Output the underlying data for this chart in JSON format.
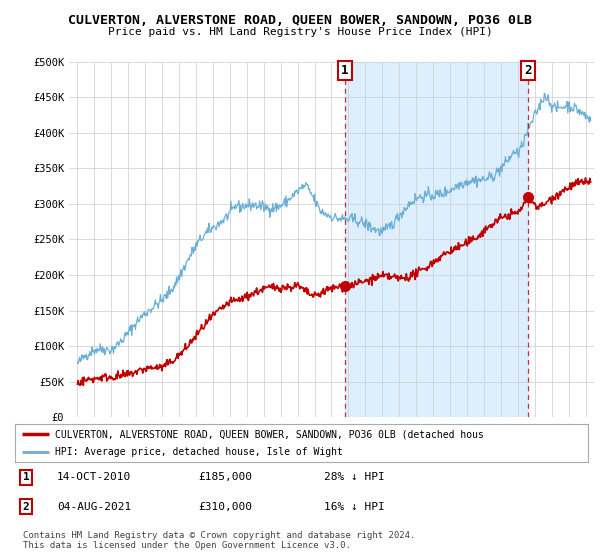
{
  "title": "CULVERTON, ALVERSTONE ROAD, QUEEN BOWER, SANDOWN, PO36 0LB",
  "subtitle": "Price paid vs. HM Land Registry's House Price Index (HPI)",
  "ylabel_ticks": [
    "£0",
    "£50K",
    "£100K",
    "£150K",
    "£200K",
    "£250K",
    "£300K",
    "£350K",
    "£400K",
    "£450K",
    "£500K"
  ],
  "ytick_values": [
    0,
    50000,
    100000,
    150000,
    200000,
    250000,
    300000,
    350000,
    400000,
    450000,
    500000
  ],
  "xlim_start": 1994.5,
  "xlim_end": 2025.5,
  "ylim": [
    0,
    500000
  ],
  "hpi_color": "#6baed6",
  "price_color": "#c00000",
  "shade_color": "#ddeeff",
  "marker1_x": 2010.79,
  "marker1_y": 185000,
  "marker1_label": "1",
  "marker2_x": 2021.59,
  "marker2_y": 310000,
  "marker2_label": "2",
  "legend_line1": "CULVERTON, ALVERSTONE ROAD, QUEEN BOWER, SANDOWN, PO36 0LB (detached hous",
  "legend_line2": "HPI: Average price, detached house, Isle of Wight",
  "annotation1_date": "14-OCT-2010",
  "annotation1_price": "£185,000",
  "annotation1_hpi": "28% ↓ HPI",
  "annotation2_date": "04-AUG-2021",
  "annotation2_price": "£310,000",
  "annotation2_hpi": "16% ↓ HPI",
  "copyright_text": "Contains HM Land Registry data © Crown copyright and database right 2024.\nThis data is licensed under the Open Government Licence v3.0.",
  "background_color": "#ffffff",
  "grid_color": "#cccccc"
}
